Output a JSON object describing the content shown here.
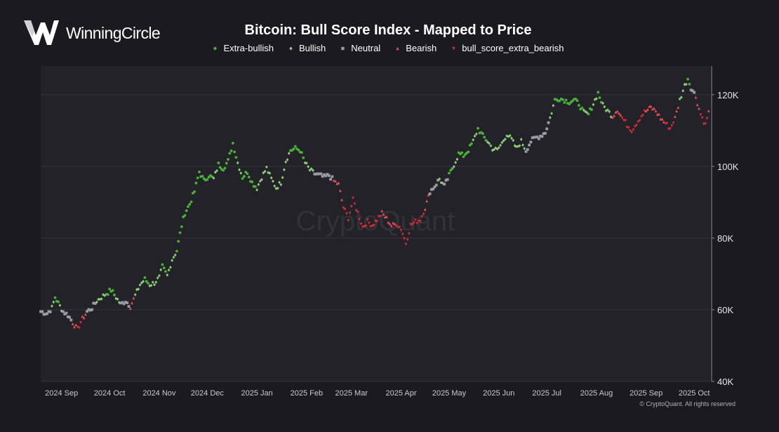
{
  "brand": {
    "name": "WinningCircle"
  },
  "copyright": "© CryptoQuant. All rights reserved",
  "chart_data": {
    "type": "scatter",
    "title": "Bitcoin: Bull Score Index - Mapped to Price",
    "watermark": "CryptoQuant",
    "xlabel": "",
    "ylabel": "",
    "ylim": [
      40000,
      128000
    ],
    "xlim_days": [
      0,
      418
    ],
    "y_ticks": [
      {
        "value": 40000,
        "label": "40K"
      },
      {
        "value": 60000,
        "label": "60K"
      },
      {
        "value": 80000,
        "label": "80K"
      },
      {
        "value": 100000,
        "label": "100K"
      },
      {
        "value": 120000,
        "label": "120K"
      }
    ],
    "x_ticks": [
      {
        "day": 13,
        "label": "2024 Sep"
      },
      {
        "day": 43,
        "label": "2024 Oct"
      },
      {
        "day": 74,
        "label": "2024 Nov"
      },
      {
        "day": 104,
        "label": "2024 Dec"
      },
      {
        "day": 135,
        "label": "2025 Jan"
      },
      {
        "day": 166,
        "label": "2025 Feb"
      },
      {
        "day": 194,
        "label": "2025 Mar"
      },
      {
        "day": 225,
        "label": "2025 Apr"
      },
      {
        "day": 255,
        "label": "2025 May"
      },
      {
        "day": 286,
        "label": "2025 Jun"
      },
      {
        "day": 316,
        "label": "2025 Jul"
      },
      {
        "day": 347,
        "label": "2025 Aug"
      },
      {
        "day": 378,
        "label": "2025 Sep"
      },
      {
        "day": 408,
        "label": "2025 Oct"
      }
    ],
    "legend_position": "top-center",
    "series": [
      {
        "key": "extra_bullish",
        "name": "Extra-bullish",
        "color": "#4caf3a",
        "marker": "circle"
      },
      {
        "key": "bullish",
        "name": "Bullish",
        "color": "#8fcf7a",
        "marker": "diamond"
      },
      {
        "key": "neutral",
        "name": "Neutral",
        "color": "#9b9ba6",
        "marker": "square"
      },
      {
        "key": "bearish",
        "name": "Bearish",
        "color": "#e0525a",
        "marker": "triangle-up"
      },
      {
        "key": "extra_bearish",
        "name": "bull_score_extra_bearish",
        "color": "#d42f38",
        "marker": "triangle-down"
      }
    ],
    "price_path": [
      [
        0,
        59500,
        "neutral"
      ],
      [
        4,
        59000,
        "neutral"
      ],
      [
        7,
        60500,
        "bullish"
      ],
      [
        9,
        63500,
        "extra_bullish"
      ],
      [
        12,
        61000,
        "bullish"
      ],
      [
        14,
        59500,
        "neutral"
      ],
      [
        17,
        58500,
        "neutral"
      ],
      [
        20,
        56500,
        "bearish"
      ],
      [
        23,
        54500,
        "extra_bearish"
      ],
      [
        26,
        57500,
        "bearish"
      ],
      [
        29,
        59500,
        "neutral"
      ],
      [
        32,
        60500,
        "neutral"
      ],
      [
        35,
        62500,
        "bullish"
      ],
      [
        38,
        63500,
        "bullish"
      ],
      [
        41,
        64500,
        "extra_bullish"
      ],
      [
        44,
        65500,
        "extra_bullish"
      ],
      [
        47,
        63500,
        "bullish"
      ],
      [
        50,
        61500,
        "neutral"
      ],
      [
        53,
        62500,
        "neutral"
      ],
      [
        56,
        61000,
        "bearish"
      ],
      [
        59,
        64000,
        "bullish"
      ],
      [
        62,
        67000,
        "bullish"
      ],
      [
        65,
        68500,
        "extra_bullish"
      ],
      [
        68,
        67000,
        "bullish"
      ],
      [
        71,
        67500,
        "bullish"
      ],
      [
        74,
        69000,
        "bullish"
      ],
      [
        76,
        72000,
        "extra_bullish"
      ],
      [
        79,
        69500,
        "bullish"
      ],
      [
        82,
        74000,
        "bullish"
      ],
      [
        85,
        76500,
        "extra_bullish"
      ],
      [
        88,
        83500,
        "extra_bullish"
      ],
      [
        90,
        87000,
        "extra_bullish"
      ],
      [
        93,
        89500,
        "extra_bullish"
      ],
      [
        96,
        93000,
        "extra_bullish"
      ],
      [
        99,
        98500,
        "extra_bullish"
      ],
      [
        102,
        96000,
        "extra_bullish"
      ],
      [
        105,
        97500,
        "extra_bullish"
      ],
      [
        108,
        96500,
        "bullish"
      ],
      [
        111,
        100500,
        "extra_bullish"
      ],
      [
        114,
        99500,
        "extra_bullish"
      ],
      [
        117,
        101500,
        "extra_bullish"
      ],
      [
        120,
        106500,
        "extra_bullish"
      ],
      [
        123,
        101000,
        "bullish"
      ],
      [
        126,
        97000,
        "extra_bullish"
      ],
      [
        129,
        98500,
        "extra_bullish"
      ],
      [
        132,
        95500,
        "extra_bullish"
      ],
      [
        135,
        94000,
        "bullish"
      ],
      [
        138,
        97000,
        "bullish"
      ],
      [
        141,
        99500,
        "bullish"
      ],
      [
        144,
        96500,
        "bullish"
      ],
      [
        147,
        94000,
        "bullish"
      ],
      [
        150,
        95500,
        "bullish"
      ],
      [
        153,
        101500,
        "bullish"
      ],
      [
        156,
        104500,
        "extra_bullish"
      ],
      [
        159,
        105000,
        "extra_bullish"
      ],
      [
        162,
        104500,
        "extra_bullish"
      ],
      [
        165,
        101000,
        "bullish"
      ],
      [
        168,
        99000,
        "bullish"
      ],
      [
        171,
        98000,
        "neutral"
      ],
      [
        174,
        97500,
        "neutral"
      ],
      [
        177,
        97000,
        "neutral"
      ],
      [
        180,
        97500,
        "neutral"
      ],
      [
        183,
        96000,
        "bearish"
      ],
      [
        186,
        95000,
        "bearish"
      ],
      [
        189,
        88500,
        "extra_bearish"
      ],
      [
        192,
        85500,
        "extra_bearish"
      ],
      [
        195,
        90500,
        "extra_bearish"
      ],
      [
        198,
        87000,
        "extra_bearish"
      ],
      [
        201,
        83000,
        "extra_bearish"
      ],
      [
        204,
        84500,
        "extra_bearish"
      ],
      [
        207,
        83500,
        "extra_bearish"
      ],
      [
        210,
        85000,
        "extra_bearish"
      ],
      [
        213,
        87000,
        "bearish"
      ],
      [
        216,
        85500,
        "bearish"
      ],
      [
        219,
        83500,
        "bearish"
      ],
      [
        222,
        84000,
        "extra_bearish"
      ],
      [
        225,
        82500,
        "extra_bearish"
      ],
      [
        228,
        78500,
        "extra_bearish"
      ],
      [
        231,
        83500,
        "extra_bearish"
      ],
      [
        234,
        84500,
        "extra_bearish"
      ],
      [
        237,
        85000,
        "extra_bearish"
      ],
      [
        240,
        88500,
        "bearish"
      ],
      [
        243,
        93000,
        "neutral"
      ],
      [
        246,
        94500,
        "neutral"
      ],
      [
        249,
        96500,
        "bullish"
      ],
      [
        252,
        94500,
        "neutral"
      ],
      [
        255,
        97500,
        "extra_bullish"
      ],
      [
        258,
        100500,
        "bullish"
      ],
      [
        261,
        103500,
        "extra_bullish"
      ],
      [
        264,
        103000,
        "extra_bullish"
      ],
      [
        267,
        104500,
        "extra_bullish"
      ],
      [
        270,
        107000,
        "bullish"
      ],
      [
        273,
        110500,
        "extra_bullish"
      ],
      [
        276,
        108500,
        "extra_bullish"
      ],
      [
        279,
        107000,
        "bullish"
      ],
      [
        282,
        105000,
        "bullish"
      ],
      [
        285,
        104500,
        "bullish"
      ],
      [
        288,
        106500,
        "bullish"
      ],
      [
        291,
        109000,
        "bullish"
      ],
      [
        294,
        107500,
        "bullish"
      ],
      [
        297,
        105000,
        "bullish"
      ],
      [
        300,
        107000,
        "bullish"
      ],
      [
        303,
        104500,
        "neutral"
      ],
      [
        306,
        107000,
        "neutral"
      ],
      [
        309,
        108000,
        "neutral"
      ],
      [
        312,
        108500,
        "neutral"
      ],
      [
        315,
        109500,
        "neutral"
      ],
      [
        318,
        113500,
        "bullish"
      ],
      [
        321,
        118500,
        "extra_bullish"
      ],
      [
        324,
        119000,
        "extra_bullish"
      ],
      [
        327,
        118500,
        "extra_bullish"
      ],
      [
        330,
        118000,
        "extra_bullish"
      ],
      [
        333,
        118500,
        "extra_bullish"
      ],
      [
        336,
        117500,
        "extra_bullish"
      ],
      [
        339,
        115000,
        "bullish"
      ],
      [
        342,
        114500,
        "extra_bullish"
      ],
      [
        345,
        117500,
        "bullish"
      ],
      [
        348,
        120500,
        "extra_bullish"
      ],
      [
        351,
        117000,
        "bullish"
      ],
      [
        354,
        115500,
        "bullish"
      ],
      [
        357,
        114000,
        "bearish"
      ],
      [
        360,
        116000,
        "bearish"
      ],
      [
        363,
        113500,
        "extra_bearish"
      ],
      [
        366,
        111500,
        "extra_bearish"
      ],
      [
        369,
        110000,
        "extra_bearish"
      ],
      [
        372,
        112000,
        "extra_bearish"
      ],
      [
        375,
        114000,
        "extra_bearish"
      ],
      [
        378,
        115500,
        "bearish"
      ],
      [
        381,
        116500,
        "bearish"
      ],
      [
        384,
        115500,
        "bearish"
      ],
      [
        387,
        113500,
        "bearish"
      ],
      [
        390,
        112000,
        "extra_bearish"
      ],
      [
        393,
        110500,
        "extra_bearish"
      ],
      [
        396,
        113500,
        "bearish"
      ],
      [
        399,
        118500,
        "bullish"
      ],
      [
        402,
        122500,
        "bullish"
      ],
      [
        404,
        124500,
        "extra_bullish"
      ],
      [
        406,
        122000,
        "neutral"
      ],
      [
        409,
        119500,
        "bearish"
      ],
      [
        412,
        114500,
        "extra_bearish"
      ],
      [
        415,
        111500,
        "extra_bearish"
      ],
      [
        417,
        115500,
        "bearish"
      ]
    ]
  }
}
